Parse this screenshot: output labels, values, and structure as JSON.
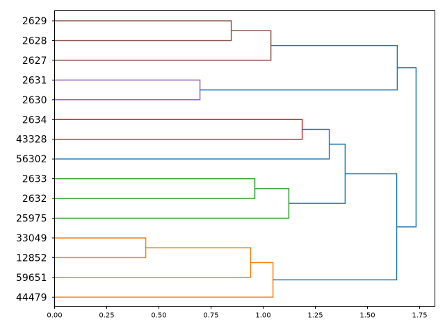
{
  "chart_data": {
    "type": "dendrogram",
    "orientation": "left",
    "title": "",
    "xlabel": "",
    "ylabel": "",
    "xlim": [
      0,
      1.823
    ],
    "xticks": [
      "0.00",
      "0.25",
      "0.50",
      "0.75",
      "1.00",
      "1.25",
      "1.50",
      "1.75"
    ],
    "xtick_values": [
      0,
      0.25,
      0.5,
      0.75,
      1.0,
      1.25,
      1.5,
      1.75
    ],
    "leaves": [
      "2629",
      "2628",
      "2627",
      "2631",
      "2630",
      "2634",
      "43328",
      "56302",
      "2633",
      "2632",
      "25975",
      "33049",
      "12852",
      "59651",
      "44479"
    ],
    "colors": {
      "blue": "#1f77b4",
      "orange": "#ff7f0e",
      "green": "#2ca02c",
      "red": "#d62728",
      "purple": "#9467bd",
      "brown": "#8c564b"
    },
    "links": [
      {
        "a": 0,
        "b": 1,
        "height": 0.847,
        "color": "brown"
      },
      {
        "a": 15,
        "b": 2,
        "height": 1.037,
        "color": "brown"
      },
      {
        "a": 3,
        "b": 4,
        "height": 0.697,
        "color": "purple"
      },
      {
        "a": 16,
        "b": 17,
        "height": 1.643,
        "color": "blue"
      },
      {
        "a": 5,
        "b": 6,
        "height": 1.187,
        "color": "red"
      },
      {
        "a": 19,
        "b": 7,
        "height": 1.317,
        "color": "blue"
      },
      {
        "a": 8,
        "b": 9,
        "height": 0.96,
        "color": "green"
      },
      {
        "a": 21,
        "b": 10,
        "height": 1.123,
        "color": "green"
      },
      {
        "a": 20,
        "b": 22,
        "height": 1.393,
        "color": "blue"
      },
      {
        "a": 11,
        "b": 12,
        "height": 0.437,
        "color": "orange"
      },
      {
        "a": 24,
        "b": 13,
        "height": 0.94,
        "color": "orange"
      },
      {
        "a": 25,
        "b": 14,
        "height": 1.047,
        "color": "orange"
      },
      {
        "a": 23,
        "b": 26,
        "height": 1.64,
        "color": "blue"
      },
      {
        "a": 18,
        "b": 27,
        "height": 1.733,
        "color": "blue"
      }
    ]
  }
}
